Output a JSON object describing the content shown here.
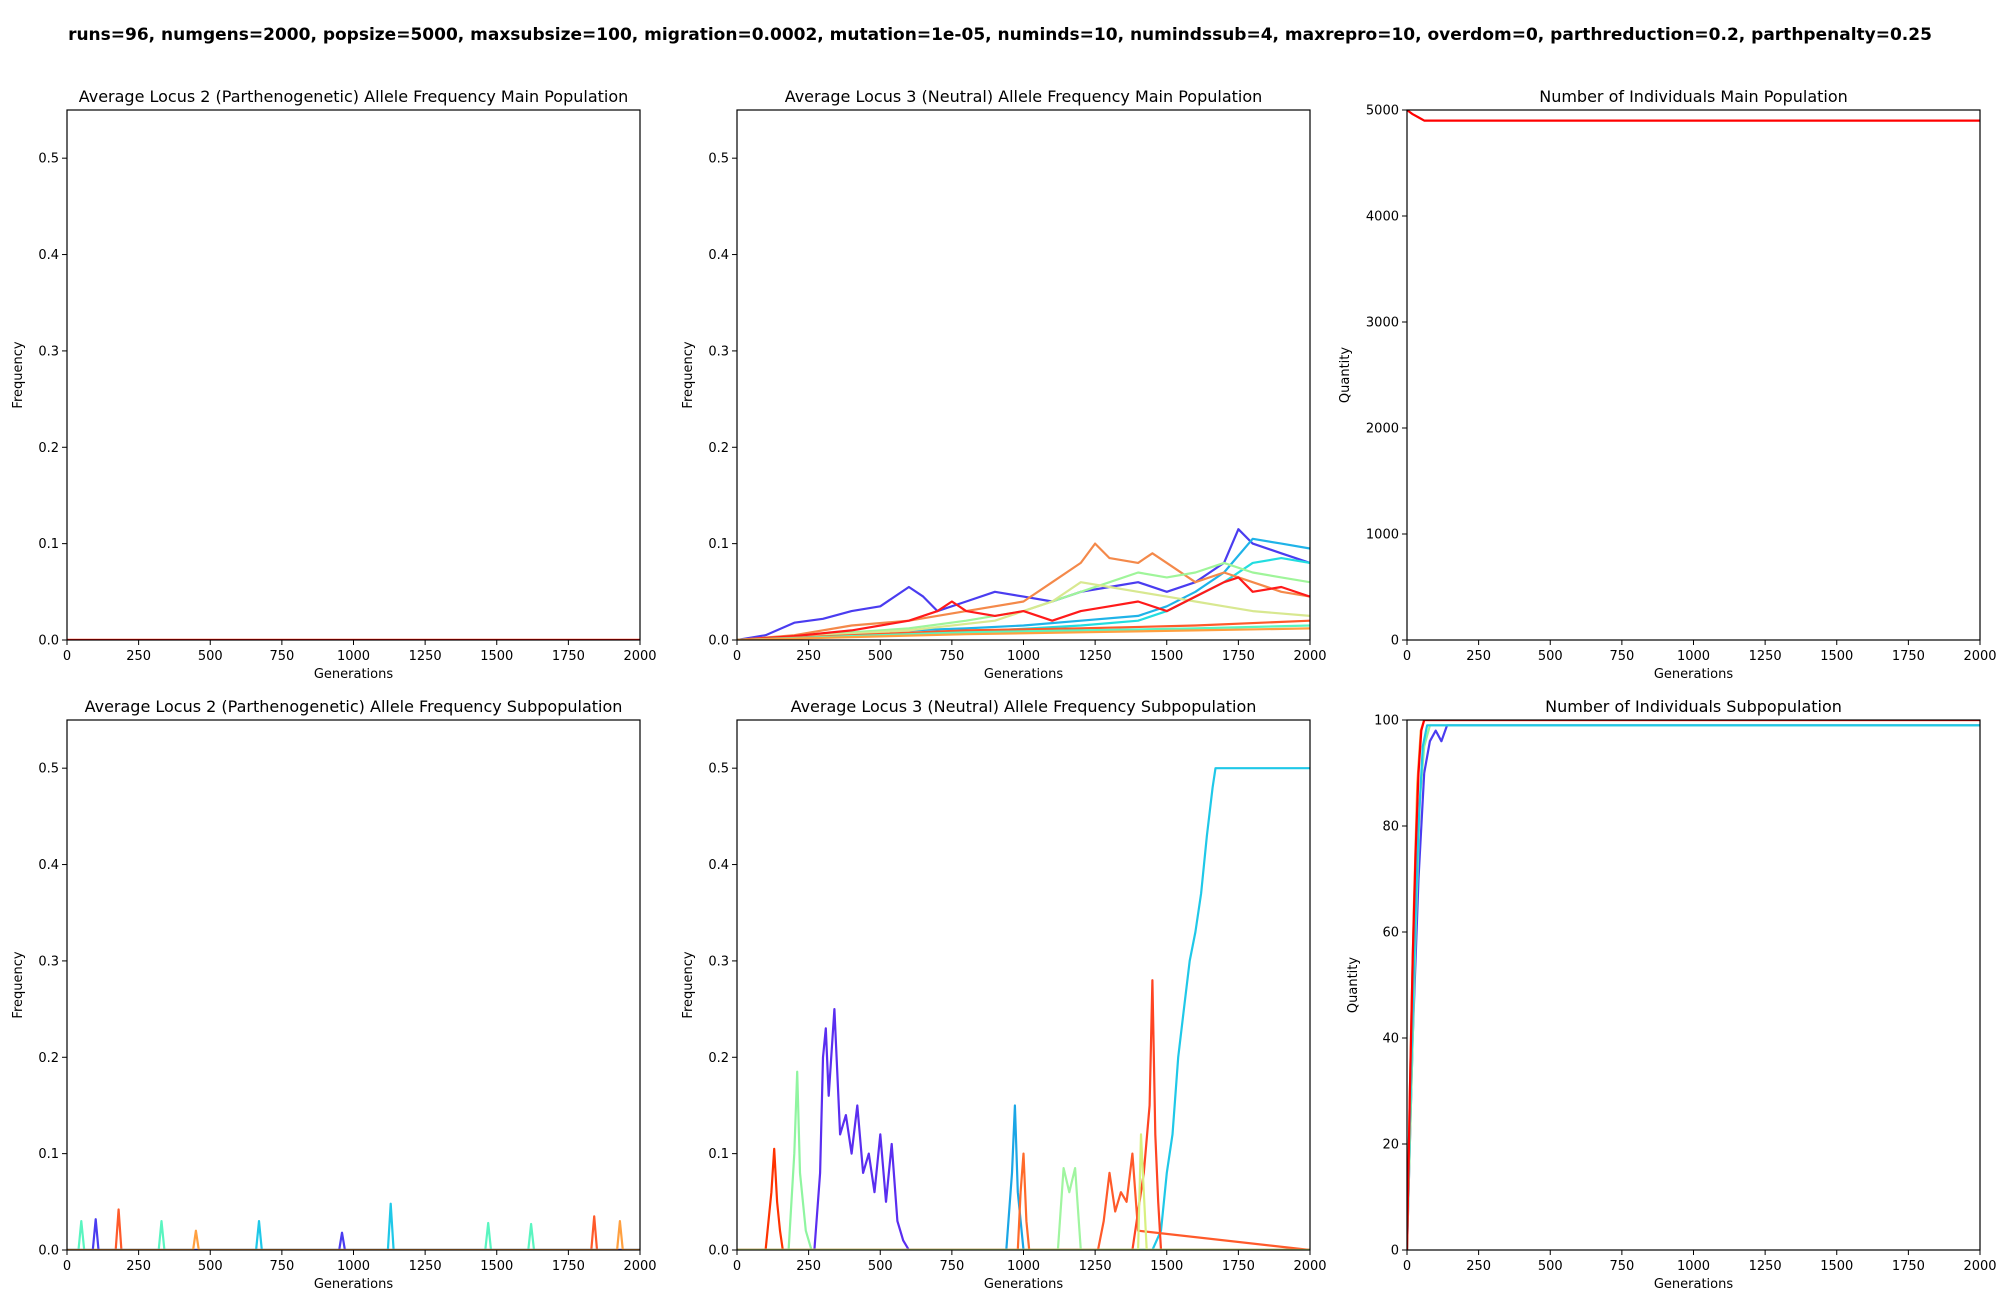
{
  "figure": {
    "suptitle": "runs=96, numgens=2000, popsize=5000, maxsubsize=100, migration=0.0002, mutation=1e-05, numinds=10, numindssub=4, maxrepro=10, overdom=0, parthreduction=0.2, parthpenalty=0.25"
  },
  "chart_data": [
    {
      "type": "line",
      "title": "Average Locus 2 (Parthenogenetic) Allele Frequency Main Population",
      "xlabel": "Generations",
      "ylabel": "Frequency",
      "xlim": [
        0,
        2000
      ],
      "ylim": [
        0,
        0.55
      ],
      "xticks": [
        0,
        250,
        500,
        750,
        1000,
        1250,
        1500,
        1750,
        2000
      ],
      "yticks": [
        "0.0",
        "0.1",
        "0.2",
        "0.3",
        "0.4",
        "0.5"
      ],
      "yticks_values": [
        0,
        0.1,
        0.2,
        0.3,
        0.4,
        0.5
      ],
      "grid": false,
      "series": [
        {
          "color": "#ff6600",
          "x": [
            0,
            500,
            1000,
            1500,
            2000
          ],
          "values": [
            0.0,
            0.0,
            0.0,
            0.0,
            0.0
          ]
        },
        {
          "color": "#ff0000",
          "x": [
            0,
            500,
            1000,
            1500,
            2000
          ],
          "values": [
            0.0,
            0.0,
            0.0,
            0.0,
            0.0
          ]
        }
      ]
    },
    {
      "type": "line",
      "title": "Average Locus 3 (Neutral) Allele Frequency Main Population",
      "xlabel": "Generations",
      "ylabel": "Frequency",
      "xlim": [
        0,
        2000
      ],
      "ylim": [
        0,
        0.55
      ],
      "xticks": [
        0,
        250,
        500,
        750,
        1000,
        1250,
        1500,
        1750,
        2000
      ],
      "yticks": [
        "0.0",
        "0.1",
        "0.2",
        "0.3",
        "0.4",
        "0.5"
      ],
      "yticks_values": [
        0,
        0.1,
        0.2,
        0.3,
        0.4,
        0.5
      ],
      "grid": false,
      "series": [
        {
          "color": "#4a3cf0",
          "x": [
            0,
            100,
            200,
            300,
            400,
            500,
            600,
            650,
            700,
            800,
            900,
            1000,
            1100,
            1200,
            1300,
            1400,
            1500,
            1600,
            1700,
            1750,
            1800,
            1900,
            2000
          ],
          "values": [
            0,
            0.005,
            0.018,
            0.022,
            0.03,
            0.035,
            0.055,
            0.045,
            0.03,
            0.04,
            0.05,
            0.045,
            0.04,
            0.05,
            0.055,
            0.06,
            0.05,
            0.06,
            0.08,
            0.115,
            0.1,
            0.09,
            0.08
          ]
        },
        {
          "color": "#1fb3e8",
          "x": [
            0,
            200,
            400,
            600,
            800,
            1000,
            1200,
            1400,
            1500,
            1600,
            1700,
            1800,
            1900,
            2000
          ],
          "values": [
            0,
            0.004,
            0.008,
            0.01,
            0.012,
            0.015,
            0.02,
            0.025,
            0.035,
            0.05,
            0.07,
            0.105,
            0.1,
            0.095
          ]
        },
        {
          "color": "#22dde0",
          "x": [
            0,
            300,
            600,
            900,
            1200,
            1400,
            1500,
            1600,
            1700,
            1800,
            1900,
            2000
          ],
          "values": [
            0,
            0.003,
            0.006,
            0.01,
            0.015,
            0.02,
            0.03,
            0.045,
            0.06,
            0.08,
            0.085,
            0.08
          ]
        },
        {
          "color": "#f4894a",
          "x": [
            0,
            200,
            400,
            600,
            800,
            1000,
            1100,
            1200,
            1250,
            1300,
            1400,
            1450,
            1500,
            1600,
            1700,
            1800,
            1900,
            2000
          ],
          "values": [
            0,
            0.005,
            0.015,
            0.02,
            0.03,
            0.04,
            0.06,
            0.08,
            0.1,
            0.085,
            0.08,
            0.09,
            0.08,
            0.06,
            0.07,
            0.06,
            0.05,
            0.045
          ]
        },
        {
          "color": "#9ff59a",
          "x": [
            0,
            200,
            400,
            600,
            800,
            1000,
            1200,
            1300,
            1400,
            1500,
            1600,
            1700,
            1800,
            1900,
            2000
          ],
          "values": [
            0,
            0.003,
            0.008,
            0.012,
            0.02,
            0.03,
            0.05,
            0.06,
            0.07,
            0.065,
            0.07,
            0.08,
            0.07,
            0.065,
            0.06
          ]
        },
        {
          "color": "#d8e890",
          "x": [
            0,
            300,
            600,
            900,
            1100,
            1200,
            1300,
            1400,
            1500,
            1600,
            1700,
            1800,
            2000
          ],
          "values": [
            0,
            0.005,
            0.01,
            0.02,
            0.04,
            0.06,
            0.055,
            0.05,
            0.045,
            0.04,
            0.035,
            0.03,
            0.025
          ]
        },
        {
          "color": "#ff1a1a",
          "x": [
            0,
            200,
            400,
            600,
            700,
            750,
            800,
            900,
            1000,
            1100,
            1200,
            1300,
            1400,
            1500,
            1600,
            1700,
            1750,
            1800,
            1900,
            2000
          ],
          "values": [
            0,
            0.004,
            0.01,
            0.02,
            0.03,
            0.04,
            0.03,
            0.025,
            0.03,
            0.02,
            0.03,
            0.035,
            0.04,
            0.03,
            0.045,
            0.06,
            0.065,
            0.05,
            0.055,
            0.045
          ]
        },
        {
          "color": "#ff5a2a",
          "x": [
            0,
            400,
            800,
            1200,
            1600,
            2000
          ],
          "values": [
            0,
            0.005,
            0.01,
            0.012,
            0.015,
            0.02
          ]
        },
        {
          "color": "#5af5c0",
          "x": [
            0,
            400,
            800,
            1200,
            1600,
            2000
          ],
          "values": [
            0,
            0.004,
            0.008,
            0.01,
            0.012,
            0.015
          ]
        },
        {
          "color": "#ffa040",
          "x": [
            0,
            400,
            800,
            1200,
            1600,
            2000
          ],
          "values": [
            0,
            0.003,
            0.006,
            0.008,
            0.01,
            0.012
          ]
        }
      ]
    },
    {
      "type": "line",
      "title": "Number of Individuals Main Population",
      "xlabel": "Generations",
      "ylabel": "Quantity",
      "xlim": [
        0,
        2000
      ],
      "ylim": [
        0,
        5000
      ],
      "xticks": [
        0,
        250,
        500,
        750,
        1000,
        1250,
        1500,
        1750,
        2000
      ],
      "yticks": [
        "0",
        "1000",
        "2000",
        "3000",
        "4000",
        "5000"
      ],
      "yticks_values": [
        0,
        1000,
        2000,
        3000,
        4000,
        5000
      ],
      "grid": false,
      "series": [
        {
          "color": "#ff0000",
          "x": [
            0,
            20,
            40,
            60,
            2000
          ],
          "values": [
            5000,
            4960,
            4930,
            4900,
            4900
          ]
        }
      ]
    },
    {
      "type": "line",
      "title": "Average Locus 2 (Parthenogenetic) Allele Frequency Subpopulation",
      "xlabel": "Generations",
      "ylabel": "Frequency",
      "xlim": [
        0,
        2000
      ],
      "ylim": [
        0,
        0.55
      ],
      "xticks": [
        0,
        250,
        500,
        750,
        1000,
        1250,
        1500,
        1750,
        2000
      ],
      "yticks": [
        "0.0",
        "0.1",
        "0.2",
        "0.3",
        "0.4",
        "0.5"
      ],
      "yticks_values": [
        0,
        0.1,
        0.2,
        0.3,
        0.4,
        0.5
      ],
      "grid": false,
      "series": [
        {
          "color": "#ff5a2a",
          "x": [
            0,
            170,
            180,
            190,
            1830,
            1840,
            1850,
            2000
          ],
          "values": [
            0,
            0,
            0.042,
            0,
            0,
            0.035,
            0,
            0
          ]
        },
        {
          "color": "#5af5c0",
          "x": [
            0,
            40,
            50,
            60,
            320,
            330,
            340,
            1460,
            1470,
            1480,
            1610,
            1620,
            1630,
            2000
          ],
          "values": [
            0,
            0,
            0.03,
            0,
            0,
            0.03,
            0,
            0,
            0.028,
            0,
            0,
            0.027,
            0,
            0
          ]
        },
        {
          "color": "#1fc8e8",
          "x": [
            0,
            660,
            670,
            680,
            1120,
            1130,
            1140,
            2000
          ],
          "values": [
            0,
            0,
            0.03,
            0,
            0,
            0.048,
            0,
            0
          ]
        },
        {
          "color": "#4a3cf0",
          "x": [
            0,
            90,
            100,
            110,
            950,
            960,
            970,
            2000
          ],
          "values": [
            0,
            0,
            0.032,
            0,
            0,
            0.018,
            0,
            0
          ]
        },
        {
          "color": "#ffa040",
          "x": [
            0,
            440,
            450,
            460,
            1920,
            1930,
            1940,
            2000
          ],
          "values": [
            0,
            0,
            0.02,
            0,
            0,
            0.03,
            0,
            0
          ]
        }
      ]
    },
    {
      "type": "line",
      "title": "Average Locus 3 (Neutral) Allele Frequency Subpopulation",
      "xlabel": "Generations",
      "ylabel": "Frequency",
      "xlim": [
        0,
        2000
      ],
      "ylim": [
        0,
        0.55
      ],
      "xticks": [
        0,
        250,
        500,
        750,
        1000,
        1250,
        1500,
        1750,
        2000
      ],
      "yticks": [
        "0.0",
        "0.1",
        "0.2",
        "0.3",
        "0.4",
        "0.5"
      ],
      "yticks_values": [
        0,
        0.1,
        0.2,
        0.3,
        0.4,
        0.5
      ],
      "grid": false,
      "series": [
        {
          "color": "#5a2ef0",
          "x": [
            0,
            270,
            290,
            300,
            310,
            320,
            340,
            360,
            380,
            400,
            420,
            440,
            460,
            480,
            500,
            520,
            540,
            560,
            580,
            600,
            2000
          ],
          "values": [
            0,
            0,
            0.08,
            0.2,
            0.23,
            0.16,
            0.25,
            0.12,
            0.14,
            0.1,
            0.15,
            0.08,
            0.1,
            0.06,
            0.12,
            0.05,
            0.11,
            0.03,
            0.01,
            0,
            0
          ]
        },
        {
          "color": "#1fc8e8",
          "x": [
            0,
            1450,
            1480,
            1500,
            1520,
            1540,
            1560,
            1580,
            1600,
            1620,
            1640,
            1660,
            1670,
            1700,
            2000
          ],
          "values": [
            0,
            0,
            0.02,
            0.08,
            0.12,
            0.2,
            0.25,
            0.3,
            0.33,
            0.37,
            0.43,
            0.48,
            0.5,
            0.5,
            0.5
          ]
        },
        {
          "color": "#ff4422",
          "x": [
            0,
            1380,
            1400,
            1420,
            1440,
            1450,
            1460,
            1470,
            1480,
            2000
          ],
          "values": [
            0,
            0,
            0.04,
            0.08,
            0.15,
            0.28,
            0.12,
            0.05,
            0,
            0
          ]
        },
        {
          "color": "#ff3300",
          "x": [
            0,
            100,
            120,
            130,
            140,
            150,
            160,
            2000
          ],
          "values": [
            0,
            0,
            0.06,
            0.105,
            0.05,
            0.02,
            0,
            0
          ]
        },
        {
          "color": "#8ff5a0",
          "x": [
            0,
            180,
            200,
            210,
            220,
            240,
            260,
            2000
          ],
          "values": [
            0,
            0,
            0.1,
            0.185,
            0.08,
            0.02,
            0,
            0
          ]
        },
        {
          "color": "#1aa6e6",
          "x": [
            0,
            940,
            960,
            970,
            980,
            1000,
            2000
          ],
          "values": [
            0,
            0,
            0.08,
            0.15,
            0.06,
            0,
            0
          ]
        },
        {
          "color": "#ff6a2a",
          "x": [
            0,
            980,
            990,
            1000,
            1010,
            1020,
            2000
          ],
          "values": [
            0,
            0,
            0.06,
            0.1,
            0.03,
            0,
            0
          ]
        },
        {
          "color": "#a0f5a0",
          "x": [
            0,
            1120,
            1140,
            1160,
            1180,
            1200,
            2000
          ],
          "values": [
            0,
            0,
            0.085,
            0.06,
            0.085,
            0,
            0
          ]
        },
        {
          "color": "#ff5a2a",
          "x": [
            0,
            1260,
            1280,
            1300,
            1320,
            1340,
            1360,
            1380,
            1400,
            2000
          ],
          "values": [
            0,
            0,
            0.03,
            0.08,
            0.04,
            0.06,
            0.05,
            0.1,
            0.02,
            0
          ]
        },
        {
          "color": "#d8f080",
          "x": [
            0,
            1400,
            1410,
            1420,
            1430,
            2000
          ],
          "values": [
            0,
            0,
            0.12,
            0.06,
            0,
            0
          ]
        }
      ]
    },
    {
      "type": "line",
      "title": "Number of Individuals Subpopulation",
      "xlabel": "Generations",
      "ylabel": "Quantity",
      "xlim": [
        0,
        2000
      ],
      "ylim": [
        0,
        100
      ],
      "xticks": [
        0,
        250,
        500,
        750,
        1000,
        1250,
        1500,
        1750,
        2000
      ],
      "yticks": [
        "0",
        "20",
        "40",
        "60",
        "80",
        "100"
      ],
      "yticks_values": [
        0,
        20,
        40,
        60,
        80,
        100
      ],
      "grid": false,
      "series": [
        {
          "color": "#4a3cf0",
          "x": [
            0,
            20,
            40,
            60,
            80,
            100,
            120,
            140,
            2000
          ],
          "values": [
            0,
            40,
            70,
            90,
            96,
            98,
            96,
            99,
            99
          ]
        },
        {
          "color": "#8ff5a0",
          "x": [
            0,
            15,
            30,
            45,
            60,
            80,
            2000
          ],
          "values": [
            0,
            30,
            60,
            85,
            95,
            99,
            99
          ]
        },
        {
          "color": "#1fc8e8",
          "x": [
            0,
            10,
            25,
            40,
            55,
            70,
            2000
          ],
          "values": [
            0,
            25,
            55,
            80,
            95,
            99,
            99
          ]
        },
        {
          "color": "#ffa040",
          "x": [
            0,
            12,
            24,
            36,
            48,
            60,
            2000
          ],
          "values": [
            0,
            35,
            65,
            88,
            98,
            100,
            100
          ]
        },
        {
          "color": "#ff0000",
          "x": [
            0,
            10,
            20,
            30,
            40,
            50,
            60,
            2000
          ],
          "values": [
            0,
            30,
            55,
            75,
            90,
            98,
            100,
            100
          ]
        }
      ]
    }
  ]
}
